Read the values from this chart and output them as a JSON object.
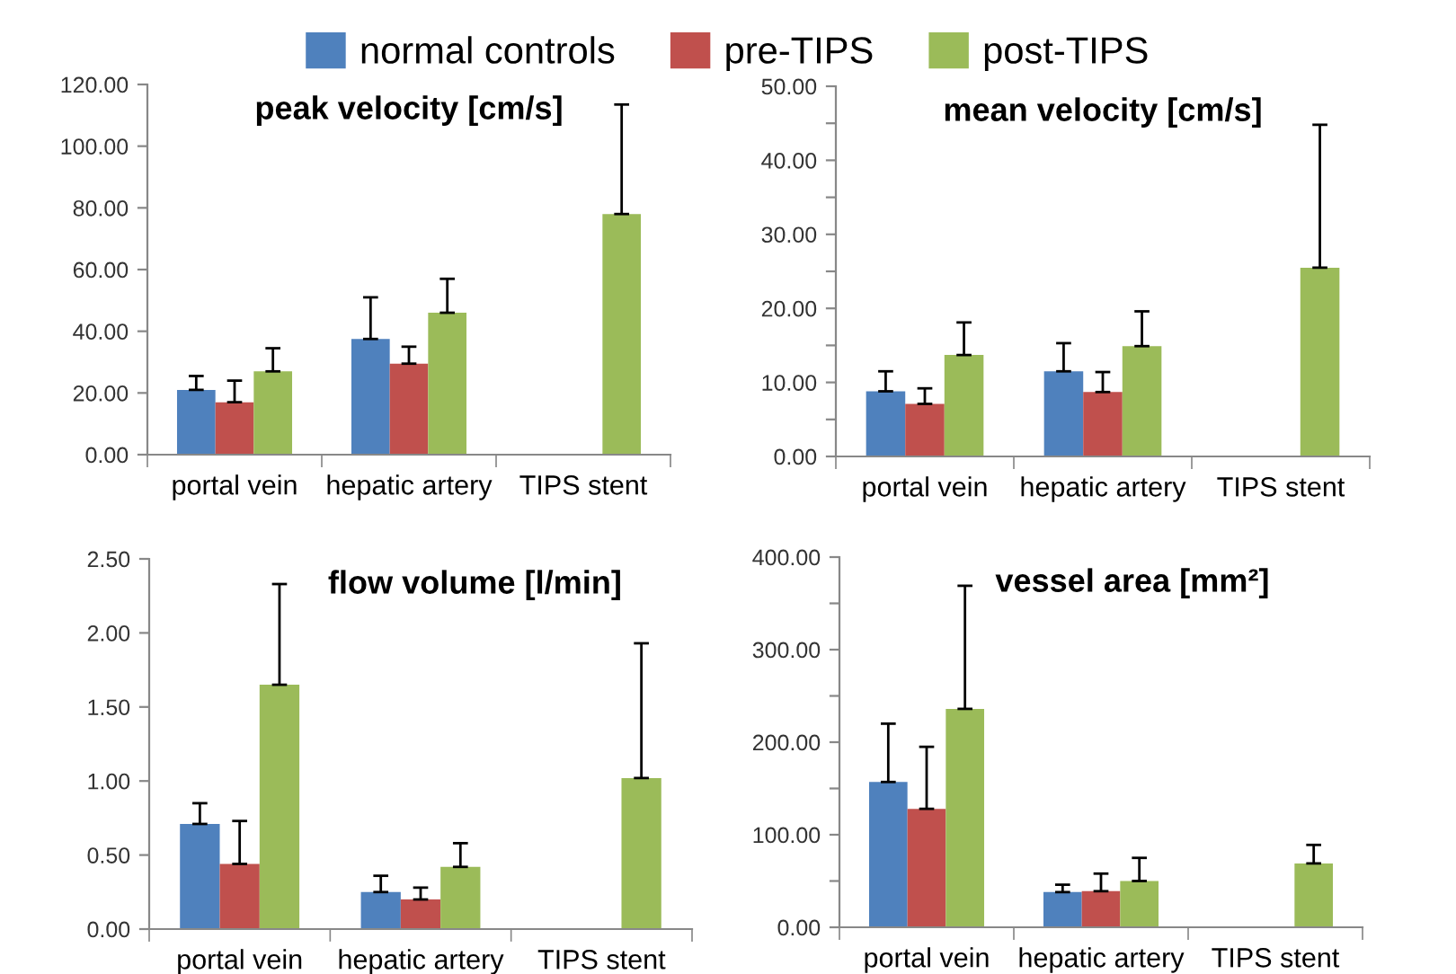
{
  "chart_data": [
    {
      "type": "bar",
      "title": "peak velocity [cm/s]",
      "categories": [
        "portal vein",
        "hepatic artery",
        "TIPS stent"
      ],
      "legend": "top",
      "series": [
        {
          "name": "normal controls",
          "color": "#4f81bd",
          "values": [
            21,
            37.5,
            null
          ],
          "errors": [
            [
              21,
              25.5
            ],
            [
              37.5,
              51
            ],
            null
          ]
        },
        {
          "name": "pre-TIPS",
          "color": "#c0504d",
          "values": [
            17,
            29.5,
            null
          ],
          "errors": [
            [
              17,
              24
            ],
            [
              29.5,
              35
            ],
            null
          ]
        },
        {
          "name": "post-TIPS",
          "color": "#9bbb59",
          "values": [
            27,
            46,
            78
          ],
          "errors": [
            [
              27,
              34.5
            ],
            [
              46,
              57
            ],
            [
              78,
              113.5
            ]
          ]
        }
      ],
      "ylim": [
        0,
        120
      ],
      "yticks": [
        {
          "value": 0,
          "label": "0.00"
        },
        {
          "value": 20,
          "label": "20.00"
        },
        {
          "value": 40,
          "label": "40.00"
        },
        {
          "value": 60,
          "label": "60.00"
        },
        {
          "value": 80,
          "label": "80.00"
        },
        {
          "value": 100,
          "label": "100.00"
        },
        {
          "value": 120,
          "label": "120.00"
        }
      ]
    },
    {
      "type": "bar",
      "title": "mean velocity [cm/s]",
      "categories": [
        "portal vein",
        "hepatic artery",
        "TIPS stent"
      ],
      "series": [
        {
          "color": "#4f81bd",
          "values": [
            8.8,
            11.5,
            null
          ],
          "errors": [
            [
              8.8,
              11.5
            ],
            [
              11.5,
              15.3
            ],
            null
          ]
        },
        {
          "color": "#c0504d",
          "values": [
            7.1,
            8.7,
            null
          ],
          "errors": [
            [
              7.1,
              9.2
            ],
            [
              8.7,
              11.4
            ],
            null
          ]
        },
        {
          "color": "#9bbb59",
          "values": [
            13.7,
            14.9,
            25.5
          ],
          "errors": [
            [
              13.7,
              18.1
            ],
            [
              14.9,
              19.6
            ],
            [
              25.5,
              44.8
            ]
          ]
        }
      ],
      "ylim": [
        0,
        50
      ],
      "yticks": [
        {
          "value": 0,
          "label": "0.00"
        },
        {
          "value": 5,
          "label": null
        },
        {
          "value": 10,
          "label": "10.00"
        },
        {
          "value": 15,
          "label": null
        },
        {
          "value": 20,
          "label": "20.00"
        },
        {
          "value": 25,
          "label": null
        },
        {
          "value": 30,
          "label": "30.00"
        },
        {
          "value": 35,
          "label": null
        },
        {
          "value": 40,
          "label": "40.00"
        },
        {
          "value": 45,
          "label": null
        },
        {
          "value": 50,
          "label": "50.00"
        }
      ]
    },
    {
      "type": "bar",
      "title": "flow volume [l/min]",
      "categories": [
        "portal vein",
        "hepatic artery",
        "TIPS stent"
      ],
      "series": [
        {
          "color": "#4f81bd",
          "values": [
            0.71,
            0.25,
            null
          ],
          "errors": [
            [
              0.71,
              0.85
            ],
            [
              0.25,
              0.36
            ],
            null
          ]
        },
        {
          "color": "#c0504d",
          "values": [
            0.44,
            0.2,
            null
          ],
          "errors": [
            [
              0.44,
              0.73
            ],
            [
              0.2,
              0.28
            ],
            null
          ]
        },
        {
          "color": "#9bbb59",
          "values": [
            1.65,
            0.42,
            1.02
          ],
          "errors": [
            [
              1.65,
              2.33
            ],
            [
              0.42,
              0.58
            ],
            [
              1.02,
              1.93
            ]
          ]
        }
      ],
      "ylim": [
        0,
        2.5
      ],
      "yticks": [
        {
          "value": 0,
          "label": "0.00"
        },
        {
          "value": 0.5,
          "label": "0.50"
        },
        {
          "value": 1,
          "label": "1.00"
        },
        {
          "value": 1.5,
          "label": "1.50"
        },
        {
          "value": 2,
          "label": "2.00"
        },
        {
          "value": 2.5,
          "label": "2.50"
        }
      ]
    },
    {
      "type": "bar",
      "title": "vessel area [mm²]",
      "categories": [
        "portal vein",
        "hepatic artery",
        "TIPS stent"
      ],
      "series": [
        {
          "color": "#4f81bd",
          "values": [
            157,
            38,
            null
          ],
          "errors": [
            [
              157,
              220
            ],
            [
              38,
              46
            ],
            null
          ]
        },
        {
          "color": "#c0504d",
          "values": [
            128,
            39,
            null
          ],
          "errors": [
            [
              128,
              195
            ],
            [
              39,
              58
            ],
            null
          ]
        },
        {
          "color": "#9bbb59",
          "values": [
            236,
            50,
            69
          ],
          "errors": [
            [
              236,
              369
            ],
            [
              50,
              75
            ],
            [
              69,
              89
            ]
          ]
        }
      ],
      "ylim": [
        0,
        400
      ],
      "yticks": [
        {
          "value": 0,
          "label": "0.00"
        },
        {
          "value": 50,
          "label": null
        },
        {
          "value": 100,
          "label": "100.00"
        },
        {
          "value": 150,
          "label": null
        },
        {
          "value": 200,
          "label": "200.00"
        },
        {
          "value": 250,
          "label": null
        },
        {
          "value": 300,
          "label": "300.00"
        },
        {
          "value": 350,
          "label": null
        },
        {
          "value": 400,
          "label": "400.00"
        }
      ]
    }
  ]
}
